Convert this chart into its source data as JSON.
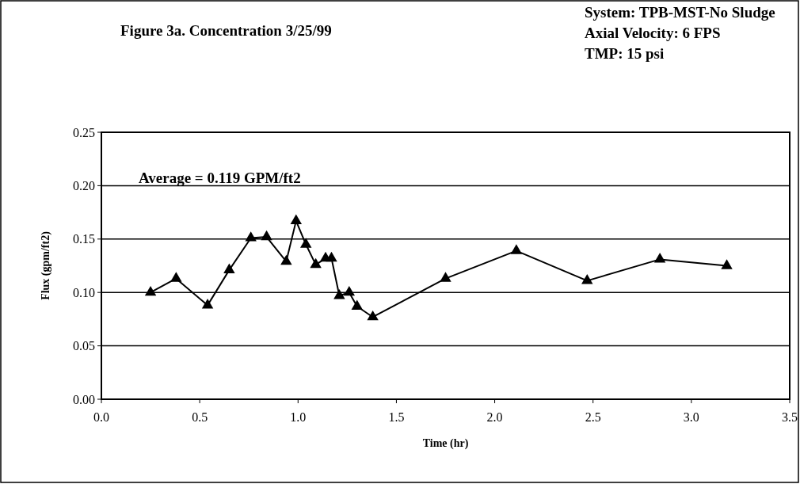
{
  "chart_data": {
    "type": "line",
    "title": "Figure 3a.  Concentration 3/25/99",
    "subtitle": "System: TPB-MST-No Sludge\nAxial Velocity: 6 FPS\nTMP: 15 psi",
    "xlabel": "Time (hr)",
    "ylabel": "Flux (gpm/ft2)",
    "annotations": [
      "Average = 0.119 GPM/ft2"
    ],
    "x": [
      0.25,
      0.38,
      0.54,
      0.65,
      0.76,
      0.84,
      0.94,
      0.99,
      1.04,
      1.09,
      1.14,
      1.17,
      1.21,
      1.26,
      1.3,
      1.38,
      1.75,
      2.11,
      2.47,
      2.84,
      3.18
    ],
    "series": [
      {
        "color": "#000000",
        "values": [
          0.1,
          0.113,
          0.088,
          0.121,
          0.151,
          0.152,
          0.129,
          0.167,
          0.145,
          0.126,
          0.132,
          0.132,
          0.097,
          0.1,
          0.087,
          0.077,
          0.113,
          0.139,
          0.111,
          0.131,
          0.125
        ]
      }
    ],
    "xlim": [
      0,
      3.5
    ],
    "xticks": [
      {
        "value": 0,
        "label": "0.0"
      },
      0.5,
      {
        "value": 1,
        "label": "1.0"
      },
      1.5,
      {
        "value": 2,
        "label": "2.0"
      },
      2.5,
      {
        "value": 3,
        "label": "3.0"
      },
      3.5
    ],
    "ylim": [
      0,
      0.25
    ],
    "yticks": [
      {
        "value": 0,
        "label": "0.00"
      },
      0.05,
      {
        "value": 0.1,
        "label": "0.10"
      },
      0.15,
      {
        "value": 0.2,
        "label": "0.20"
      },
      0.25
    ],
    "grid": "y",
    "marker": "triangle",
    "line_style": "solid"
  }
}
